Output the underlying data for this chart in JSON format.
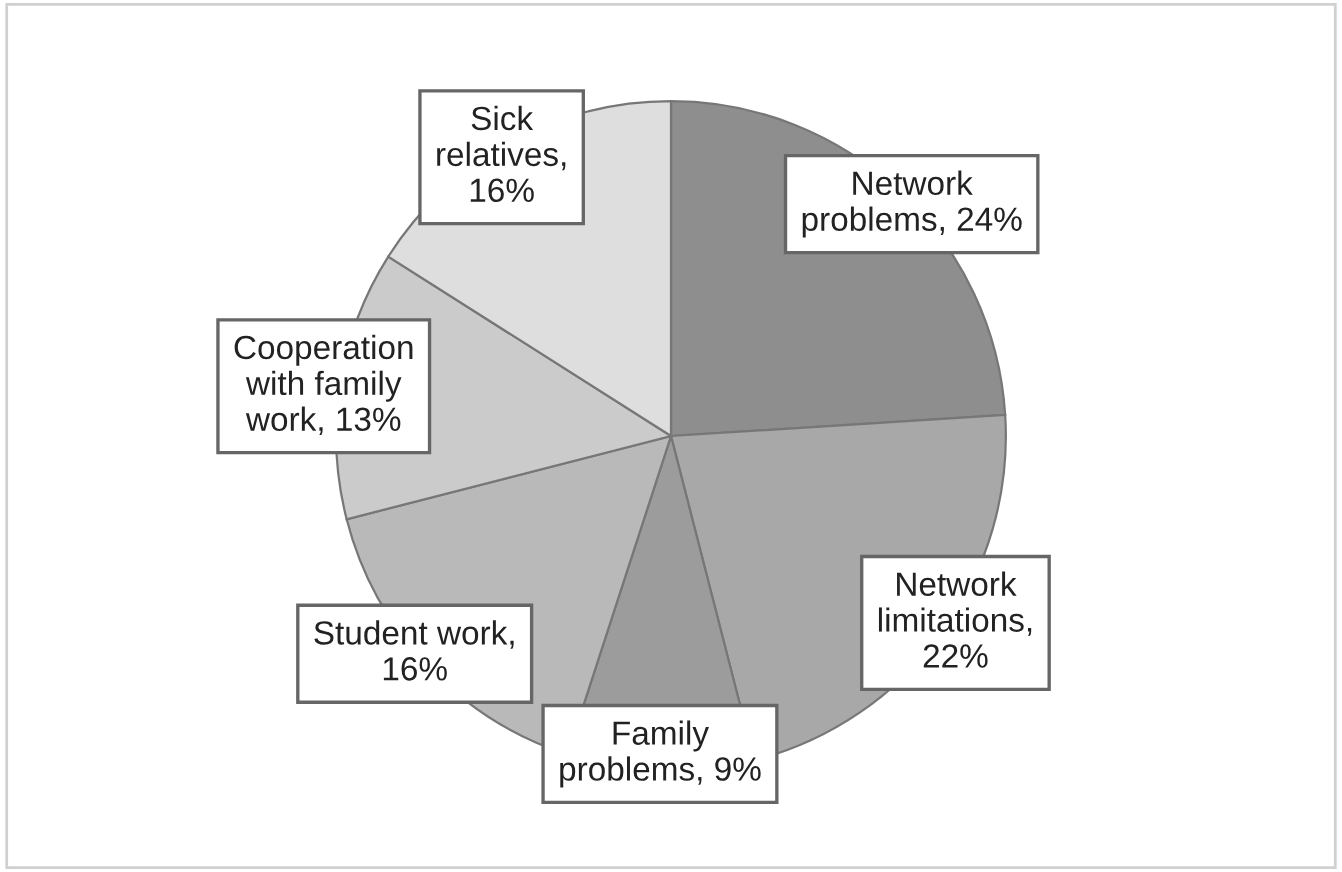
{
  "chart_data": {
    "type": "pie",
    "categories": [
      "Network problems, 24%",
      "Network limitations, 22%",
      "Family problems, 9%",
      "Student work, 16%",
      "Cooperation with family work, 13%",
      "Sick relatives, 16%"
    ],
    "values": [
      24,
      22,
      9,
      16,
      13,
      16
    ],
    "colors": [
      "#8e8e8e",
      "#a8a8a8",
      "#9c9c9c",
      "#b9b9b9",
      "#cbcbcb",
      "#dedede"
    ],
    "legend": false
  }
}
